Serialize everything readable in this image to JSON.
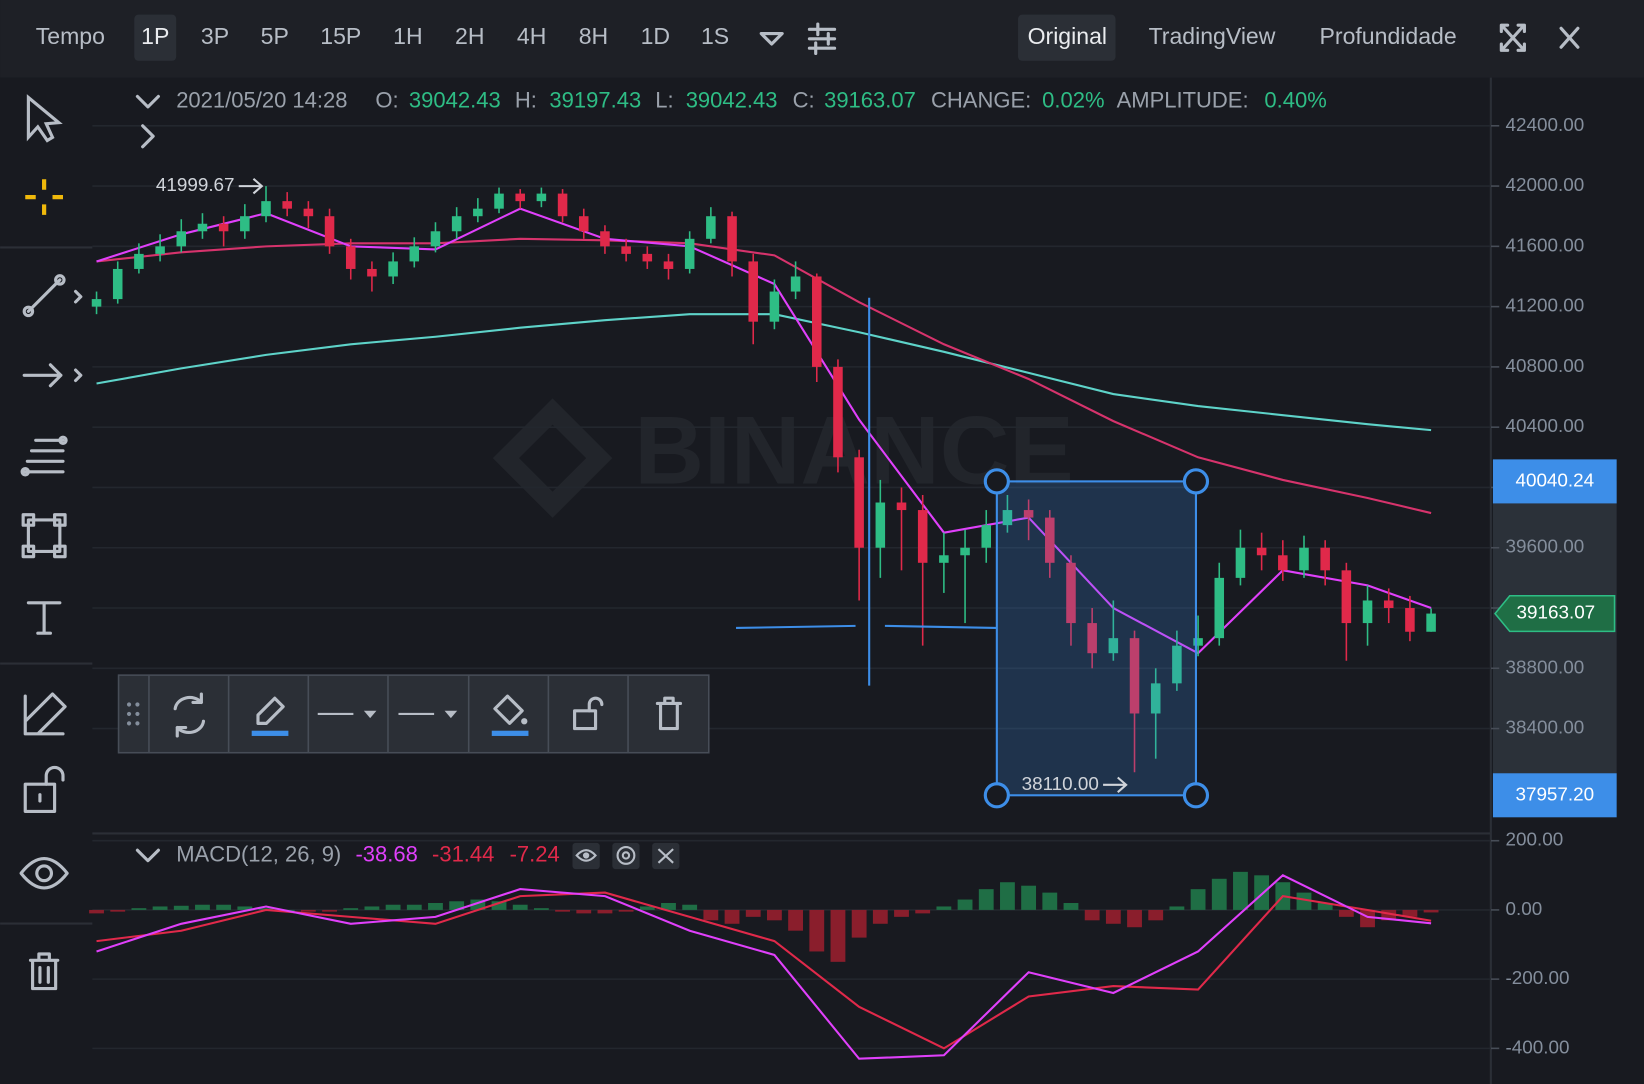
{
  "toolbar": {
    "intervals_label": "Tempo",
    "intervals": [
      "1P",
      "3P",
      "5P",
      "15P",
      "1H",
      "2H",
      "4H",
      "8H",
      "1D",
      "1S"
    ],
    "views": [
      "Original",
      "TradingView",
      "Profundidade"
    ]
  },
  "header": {
    "datetime": "2021/05/20 14:28",
    "open_label": "O:",
    "high_label": "H:",
    "low_label": "L:",
    "close_label": "C:",
    "change_label": "CHANGE:",
    "change": "0.02%",
    "amplitude_label": "AMPLITUDE:",
    "amplitude": "0.40%"
  },
  "watermark": "BINANCE",
  "chart_data": [
    {
      "type": "candlestick",
      "up_color": "#2ebd85",
      "down_color": "#e0294a",
      "open": [
        41200,
        41250,
        41450,
        41550,
        41600,
        41700,
        41750,
        41700,
        41800,
        41900,
        41850,
        41800,
        41600,
        41450,
        41400,
        41500,
        41600,
        41700,
        41800,
        41850,
        41950,
        41900,
        41950,
        41800,
        41700,
        41600,
        41550,
        41500,
        41450,
        41650,
        41800,
        41500,
        41100,
        41300,
        41400,
        40800,
        40200,
        39600,
        39900,
        39850,
        39500,
        39550,
        39600,
        39750,
        39850,
        39800,
        39500,
        39100,
        38900,
        39000,
        38500,
        38700,
        38950,
        39000,
        39400,
        39600,
        39550,
        39450,
        39600,
        39450,
        39100,
        39250,
        39200,
        39042.43
      ],
      "high": [
        41300,
        41500,
        41620,
        41680,
        41780,
        41820,
        41800,
        41880,
        41999.67,
        41960,
        41900,
        41850,
        41650,
        41500,
        41560,
        41660,
        41760,
        41860,
        41920,
        41990,
        41980,
        41990,
        41980,
        41850,
        41740,
        41650,
        41600,
        41550,
        41700,
        41860,
        41830,
        41550,
        41380,
        41500,
        41420,
        40850,
        40250,
        40050,
        40000,
        39950,
        39700,
        39720,
        39850,
        39950,
        39920,
        39850,
        39550,
        39200,
        39250,
        39050,
        38800,
        39050,
        39150,
        39500,
        39720,
        39700,
        39650,
        39680,
        39650,
        39500,
        39350,
        39330,
        39280,
        39197.43
      ],
      "low": [
        41150,
        41220,
        41420,
        41500,
        41560,
        41650,
        41600,
        41650,
        41760,
        41800,
        41720,
        41550,
        41380,
        41300,
        41350,
        41460,
        41560,
        41650,
        41760,
        41820,
        41850,
        41860,
        41760,
        41650,
        41550,
        41500,
        41450,
        41380,
        41420,
        41620,
        41400,
        40950,
        41050,
        41250,
        40700,
        40100,
        39250,
        39400,
        39450,
        38950,
        39300,
        39100,
        39500,
        39700,
        39650,
        39400,
        38950,
        38800,
        38850,
        38110,
        38200,
        38650,
        38880,
        38950,
        39350,
        39450,
        39380,
        39400,
        39350,
        38850,
        38950,
        39100,
        38980,
        39042.43
      ],
      "close": [
        41250,
        41450,
        41550,
        41600,
        41700,
        41750,
        41700,
        41800,
        41900,
        41850,
        41800,
        41600,
        41450,
        41400,
        41500,
        41600,
        41700,
        41800,
        41850,
        41950,
        41900,
        41950,
        41800,
        41700,
        41600,
        41550,
        41500,
        41450,
        41650,
        41800,
        41500,
        41100,
        41300,
        41400,
        40800,
        40200,
        39600,
        39900,
        39850,
        39500,
        39550,
        39600,
        39750,
        39850,
        39800,
        39500,
        39100,
        38900,
        39000,
        38500,
        38700,
        38950,
        39000,
        39400,
        39600,
        39550,
        39450,
        39600,
        39450,
        39100,
        39250,
        39200,
        39042.43,
        39163.07
      ],
      "ma_x": [
        0,
        4,
        8,
        12,
        16,
        20,
        24,
        28,
        32,
        36,
        40,
        44,
        48,
        52,
        56,
        60,
        63
      ],
      "moving_averages": [
        {
          "color": "#5ed3c9",
          "values": [
            40690,
            40790,
            40880,
            40950,
            41000,
            41060,
            41110,
            41150,
            41150,
            41030,
            40900,
            40760,
            40620,
            40540,
            40480,
            40420,
            40380
          ]
        },
        {
          "color": "#d6336c",
          "values": [
            41500,
            41560,
            41600,
            41620,
            41620,
            41650,
            41640,
            41620,
            41540,
            41230,
            40950,
            40720,
            40440,
            40200,
            40050,
            39930,
            39830
          ]
        },
        {
          "color": "#e040fb",
          "values": [
            41500,
            41680,
            41820,
            41600,
            41580,
            41850,
            41650,
            41600,
            41350,
            40450,
            39700,
            39800,
            39200,
            38900,
            39450,
            39350,
            39200
          ]
        }
      ],
      "high_marker": "41999.67",
      "low_marker": "38110.00",
      "rectangle": {
        "x": [
          42.5,
          51.9
        ],
        "top": 40040.24,
        "bottom": {
          "value": 37957.2,
          "label": "37957.20"
        }
      },
      "ylim": [
        37704,
        42713
      ],
      "yticks": [
        {
          "value": 38400,
          "label": "38400.00"
        },
        {
          "value": 38800,
          "label": "38800.00"
        },
        {
          "value": 39200,
          "label": "39200.00"
        },
        {
          "value": 39600,
          "label": "39600.00"
        },
        {
          "value": 40000,
          "label": "40000.00"
        },
        {
          "value": 40400,
          "label": "40400.00"
        },
        {
          "value": 40800,
          "label": "40800.00"
        },
        {
          "value": 41200,
          "label": "41200.00"
        },
        {
          "value": 41600,
          "label": "41600.00"
        },
        {
          "value": 42000,
          "label": "42000.00"
        },
        {
          "value": 42400,
          "label": "42400.00"
        }
      ],
      "grid": true
    },
    {
      "type": "macd",
      "title": "MACD(12, 26, 9)",
      "histogram": {
        "up_color": "#1f6e45",
        "down_color": "#8a1e2c",
        "values": [
          -10,
          -5,
          5,
          10,
          12,
          15,
          15,
          10,
          5,
          0,
          -5,
          -5,
          5,
          10,
          15,
          15,
          20,
          25,
          30,
          25,
          15,
          5,
          -5,
          -10,
          -10,
          -5,
          10,
          20,
          15,
          -30,
          -40,
          -20,
          -30,
          -60,
          -120,
          -150,
          -80,
          -40,
          -20,
          -10,
          10,
          30,
          60,
          80,
          70,
          50,
          20,
          -30,
          -40,
          -50,
          -30,
          10,
          60,
          90,
          110,
          100,
          80,
          50,
          20,
          -20,
          -50,
          -30,
          -20,
          -7.24
        ]
      },
      "x": [
        0,
        4,
        8,
        12,
        16,
        20,
        24,
        28,
        32,
        36,
        40,
        44,
        48,
        52,
        56,
        60,
        63
      ],
      "macd": {
        "color": "#e040fb",
        "values": [
          -120,
          -40,
          10,
          -40,
          -20,
          60,
          40,
          -60,
          -130,
          -430,
          -420,
          -180,
          -240,
          -120,
          100,
          -20,
          -38.68
        ]
      },
      "signal": {
        "color": "#e0294a",
        "values": [
          -90,
          -60,
          0,
          -20,
          -40,
          40,
          50,
          -20,
          -90,
          -280,
          -400,
          -250,
          -220,
          -230,
          40,
          0,
          -31.44
        ]
      },
      "ylim": [
        -503,
        221
      ],
      "yticks": [
        {
          "value": 200,
          "label": "200.00"
        },
        {
          "value": 0,
          "label": "0.00"
        },
        {
          "value": -200,
          "label": "-200.00"
        },
        {
          "value": -400,
          "label": "-400.00"
        }
      ],
      "grid": true
    }
  ]
}
